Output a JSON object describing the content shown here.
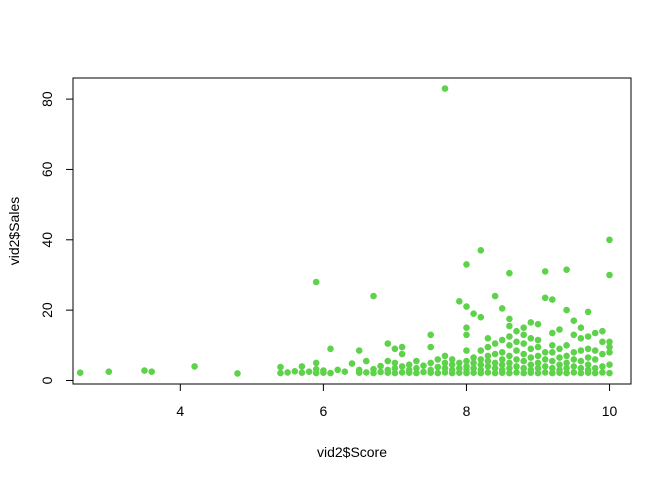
{
  "chart_data": {
    "type": "scatter",
    "title": "",
    "xlabel": "vid2$Score",
    "ylabel": "vid2$Sales",
    "xlim": [
      2.5,
      10.3
    ],
    "ylim": [
      -1,
      86
    ],
    "x_ticks": [
      4,
      6,
      8,
      10
    ],
    "y_ticks": [
      0,
      20,
      40,
      60,
      80
    ],
    "grid": false,
    "legend": "none",
    "point_color": "#5dd24a",
    "series": [
      {
        "points": [
          [
            2.6,
            2.2
          ],
          [
            3.0,
            2.5
          ],
          [
            3.5,
            2.8
          ],
          [
            3.6,
            2.5
          ],
          [
            4.2,
            4.0
          ],
          [
            4.8,
            2.0
          ],
          [
            5.4,
            2.1
          ],
          [
            5.4,
            3.8
          ],
          [
            5.5,
            2.3
          ],
          [
            5.6,
            2.6
          ],
          [
            5.7,
            2.2
          ],
          [
            5.7,
            4.0
          ],
          [
            5.8,
            2.5
          ],
          [
            5.9,
            2.1
          ],
          [
            5.9,
            3.2
          ],
          [
            5.9,
            5.0
          ],
          [
            5.9,
            28.0
          ],
          [
            6.0,
            2.2
          ],
          [
            6.0,
            2.8
          ],
          [
            6.1,
            2.1
          ],
          [
            6.1,
            9.0
          ],
          [
            6.2,
            3.0
          ],
          [
            6.3,
            2.5
          ],
          [
            6.4,
            4.8
          ],
          [
            6.5,
            2.2
          ],
          [
            6.5,
            3.0
          ],
          [
            6.5,
            8.5
          ],
          [
            6.6,
            2.3
          ],
          [
            6.6,
            5.5
          ],
          [
            6.7,
            2.1
          ],
          [
            6.7,
            3.2
          ],
          [
            6.7,
            24.0
          ],
          [
            6.8,
            2.4
          ],
          [
            6.8,
            4.1
          ],
          [
            6.9,
            2.2
          ],
          [
            6.9,
            3.0
          ],
          [
            6.9,
            5.5
          ],
          [
            6.9,
            10.5
          ],
          [
            7.0,
            2.1
          ],
          [
            7.0,
            3.5
          ],
          [
            7.0,
            5.0
          ],
          [
            7.0,
            9.0
          ],
          [
            7.1,
            2.3
          ],
          [
            7.1,
            4.0
          ],
          [
            7.1,
            7.5
          ],
          [
            7.1,
            9.5
          ],
          [
            7.2,
            2.2
          ],
          [
            7.2,
            3.0
          ],
          [
            7.2,
            4.5
          ],
          [
            7.3,
            2.1
          ],
          [
            7.3,
            3.5
          ],
          [
            7.3,
            5.5
          ],
          [
            7.4,
            2.4
          ],
          [
            7.4,
            4.2
          ],
          [
            7.5,
            2.2
          ],
          [
            7.5,
            3.0
          ],
          [
            7.5,
            5.0
          ],
          [
            7.5,
            9.5
          ],
          [
            7.5,
            13.0
          ],
          [
            7.6,
            2.1
          ],
          [
            7.6,
            3.8
          ],
          [
            7.6,
            6.0
          ],
          [
            7.7,
            2.3
          ],
          [
            7.7,
            3.5
          ],
          [
            7.7,
            5.0
          ],
          [
            7.7,
            7.0
          ],
          [
            7.7,
            83.0
          ],
          [
            7.8,
            2.1
          ],
          [
            7.8,
            3.0
          ],
          [
            7.8,
            4.5
          ],
          [
            7.8,
            6.0
          ],
          [
            7.9,
            2.2
          ],
          [
            7.9,
            3.5
          ],
          [
            7.9,
            5.0
          ],
          [
            7.9,
            22.5
          ],
          [
            8.0,
            2.1
          ],
          [
            8.0,
            3.0
          ],
          [
            8.0,
            4.0
          ],
          [
            8.0,
            5.5
          ],
          [
            8.0,
            8.5
          ],
          [
            8.0,
            13.0
          ],
          [
            8.0,
            15.0
          ],
          [
            8.0,
            21.0
          ],
          [
            8.0,
            33.0
          ],
          [
            8.1,
            2.2
          ],
          [
            8.1,
            3.5
          ],
          [
            8.1,
            5.0
          ],
          [
            8.1,
            6.5
          ],
          [
            8.1,
            19.0
          ],
          [
            8.2,
            2.1
          ],
          [
            8.2,
            3.0
          ],
          [
            8.2,
            4.5
          ],
          [
            8.2,
            6.0
          ],
          [
            8.2,
            8.5
          ],
          [
            8.2,
            18.0
          ],
          [
            8.2,
            37.0
          ],
          [
            8.3,
            2.3
          ],
          [
            8.3,
            4.0
          ],
          [
            8.3,
            5.5
          ],
          [
            8.3,
            7.0
          ],
          [
            8.3,
            9.5
          ],
          [
            8.3,
            12.0
          ],
          [
            8.4,
            2.1
          ],
          [
            8.4,
            3.5
          ],
          [
            8.4,
            5.0
          ],
          [
            8.4,
            7.5
          ],
          [
            8.4,
            10.5
          ],
          [
            8.4,
            24.0
          ],
          [
            8.5,
            2.2
          ],
          [
            8.5,
            3.0
          ],
          [
            8.5,
            4.5
          ],
          [
            8.5,
            6.0
          ],
          [
            8.5,
            8.0
          ],
          [
            8.5,
            11.5
          ],
          [
            8.5,
            20.5
          ],
          [
            8.6,
            2.1
          ],
          [
            8.6,
            3.5
          ],
          [
            8.6,
            5.0
          ],
          [
            8.6,
            7.0
          ],
          [
            8.6,
            10.0
          ],
          [
            8.6,
            12.5
          ],
          [
            8.6,
            15.5
          ],
          [
            8.6,
            17.5
          ],
          [
            8.6,
            30.5
          ],
          [
            8.7,
            2.3
          ],
          [
            8.7,
            4.0
          ],
          [
            8.7,
            6.0
          ],
          [
            8.7,
            8.5
          ],
          [
            8.7,
            11.0
          ],
          [
            8.7,
            14.0
          ],
          [
            8.8,
            2.1
          ],
          [
            8.8,
            3.5
          ],
          [
            8.8,
            5.5
          ],
          [
            8.8,
            7.5
          ],
          [
            8.8,
            10.5
          ],
          [
            8.8,
            13.0
          ],
          [
            8.8,
            15.0
          ],
          [
            8.9,
            2.2
          ],
          [
            8.9,
            3.0
          ],
          [
            8.9,
            4.5
          ],
          [
            8.9,
            6.5
          ],
          [
            8.9,
            9.0
          ],
          [
            8.9,
            12.0
          ],
          [
            8.9,
            16.5
          ],
          [
            9.0,
            2.1
          ],
          [
            9.0,
            3.5
          ],
          [
            9.0,
            5.0
          ],
          [
            9.0,
            7.0
          ],
          [
            9.0,
            9.5
          ],
          [
            9.0,
            11.5
          ],
          [
            9.0,
            16.0
          ],
          [
            9.1,
            2.3
          ],
          [
            9.1,
            4.0
          ],
          [
            9.1,
            6.0
          ],
          [
            9.1,
            8.0
          ],
          [
            9.1,
            23.5
          ],
          [
            9.1,
            31.0
          ],
          [
            9.2,
            2.1
          ],
          [
            9.2,
            3.5
          ],
          [
            9.2,
            5.5
          ],
          [
            9.2,
            8.0
          ],
          [
            9.2,
            10.0
          ],
          [
            9.2,
            13.5
          ],
          [
            9.2,
            23.0
          ],
          [
            9.3,
            2.2
          ],
          [
            9.3,
            3.0
          ],
          [
            9.3,
            4.5
          ],
          [
            9.3,
            6.5
          ],
          [
            9.3,
            9.0
          ],
          [
            9.3,
            14.5
          ],
          [
            9.4,
            2.1
          ],
          [
            9.4,
            3.5
          ],
          [
            9.4,
            5.0
          ],
          [
            9.4,
            7.0
          ],
          [
            9.4,
            10.0
          ],
          [
            9.4,
            20.0
          ],
          [
            9.4,
            31.5
          ],
          [
            9.5,
            2.3
          ],
          [
            9.5,
            4.0
          ],
          [
            9.5,
            6.0
          ],
          [
            9.5,
            8.0
          ],
          [
            9.5,
            13.0
          ],
          [
            9.5,
            17.0
          ],
          [
            9.6,
            2.1
          ],
          [
            9.6,
            3.5
          ],
          [
            9.6,
            5.5
          ],
          [
            9.6,
            8.5
          ],
          [
            9.6,
            12.0
          ],
          [
            9.6,
            15.0
          ],
          [
            9.7,
            2.2
          ],
          [
            9.7,
            3.0
          ],
          [
            9.7,
            4.5
          ],
          [
            9.7,
            6.5
          ],
          [
            9.7,
            9.0
          ],
          [
            9.7,
            12.5
          ],
          [
            9.7,
            19.5
          ],
          [
            9.8,
            2.1
          ],
          [
            9.8,
            3.5
          ],
          [
            9.8,
            6.0
          ],
          [
            9.8,
            8.5
          ],
          [
            9.8,
            13.5
          ],
          [
            9.9,
            2.3
          ],
          [
            9.9,
            4.0
          ],
          [
            9.9,
            7.5
          ],
          [
            9.9,
            11.0
          ],
          [
            9.9,
            14.0
          ],
          [
            10.0,
            2.1
          ],
          [
            10.0,
            4.5
          ],
          [
            10.0,
            8.0
          ],
          [
            10.0,
            9.5
          ],
          [
            10.0,
            11.0
          ],
          [
            10.0,
            30.0
          ],
          [
            10.0,
            40.0
          ]
        ]
      }
    ]
  }
}
